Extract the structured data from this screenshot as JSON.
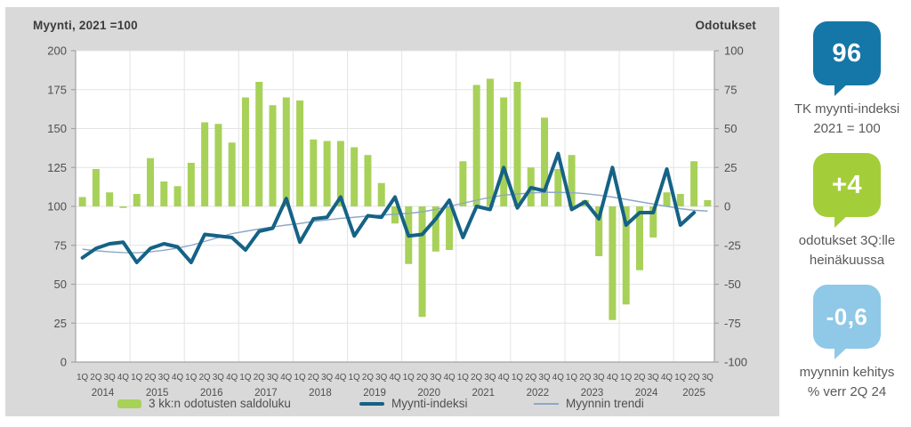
{
  "chart": {
    "title_left": "Myynti, 2021 =100",
    "title_right": "Odotukset"
  },
  "chart_data": {
    "type": "bar+line combo, dual axis",
    "left_axis": {
      "label": "Myynti, 2021 =100",
      "min": 0,
      "max": 200,
      "step": 25,
      "ticks": [
        0,
        25,
        50,
        75,
        100,
        125,
        150,
        175,
        200
      ]
    },
    "right_axis": {
      "label": "Odotukset",
      "min": -100,
      "max": 100,
      "step": 25,
      "ticks": [
        -100,
        -75,
        -50,
        -25,
        0,
        25,
        50,
        75,
        100
      ]
    },
    "years": [
      {
        "year": "2014",
        "quarters": [
          "1Q",
          "2Q",
          "3Q",
          "4Q"
        ]
      },
      {
        "year": "2015",
        "quarters": [
          "1Q",
          "2Q",
          "3Q",
          "4Q"
        ]
      },
      {
        "year": "2016",
        "quarters": [
          "1Q",
          "2Q",
          "3Q",
          "4Q"
        ]
      },
      {
        "year": "2017",
        "quarters": [
          "1Q",
          "2Q",
          "3Q",
          "4Q"
        ]
      },
      {
        "year": "2018",
        "quarters": [
          "1Q",
          "2Q",
          "3Q",
          "4Q"
        ]
      },
      {
        "year": "2019",
        "quarters": [
          "1Q",
          "2Q",
          "3Q",
          "4Q"
        ]
      },
      {
        "year": "2020",
        "quarters": [
          "1Q",
          "2Q",
          "3Q",
          "4Q"
        ]
      },
      {
        "year": "2021",
        "quarters": [
          "1Q",
          "2Q",
          "3Q",
          "4Q"
        ]
      },
      {
        "year": "2022",
        "quarters": [
          "1Q",
          "2Q",
          "3Q",
          "4Q"
        ]
      },
      {
        "year": "2023",
        "quarters": [
          "1Q",
          "2Q",
          "3Q",
          "4Q"
        ]
      },
      {
        "year": "2024",
        "quarters": [
          "1Q",
          "2Q",
          "3Q",
          "4Q"
        ]
      },
      {
        "year": "2025",
        "quarters": [
          "1Q",
          "2Q",
          "3Q"
        ]
      }
    ],
    "series": [
      {
        "name": "3 kk:n odotusten saldoluku",
        "type": "bar",
        "axis": "right",
        "color": "#a8d159",
        "values": [
          6,
          24,
          9,
          -1,
          8,
          31,
          16,
          13,
          28,
          54,
          53,
          41,
          70,
          80,
          65,
          70,
          68,
          43,
          42,
          42,
          38,
          33,
          15,
          -11,
          -37,
          -71,
          -29,
          -28,
          29,
          78,
          82,
          70,
          80,
          25,
          57,
          24,
          33,
          4,
          -32,
          -73,
          -63,
          -41,
          -20,
          9,
          8,
          29,
          4
        ]
      },
      {
        "name": "Myynti-indeksi",
        "type": "line",
        "axis": "left",
        "color": "#156286",
        "values": [
          67,
          73,
          76,
          77,
          64,
          73,
          76,
          74,
          64,
          82,
          81,
          80,
          72,
          84,
          86,
          105,
          77,
          92,
          93,
          106,
          81,
          94,
          93,
          106,
          81,
          82,
          92,
          104,
          80,
          100,
          98,
          125,
          99,
          112,
          110,
          134,
          98,
          103,
          92,
          125,
          88,
          96,
          96,
          124,
          88,
          96,
          null
        ]
      },
      {
        "name": "Myynnin trendi",
        "type": "line",
        "axis": "left",
        "color": "#8ca8c6",
        "values": [
          72.5,
          71.5,
          70.8,
          70.3,
          70.2,
          70.8,
          71.8,
          73.2,
          75,
          77.5,
          80,
          82.5,
          84,
          85.5,
          86.8,
          88,
          89,
          90.3,
          91.3,
          92.3,
          93,
          93.8,
          94.4,
          95,
          95.5,
          96.5,
          98,
          100,
          102,
          104,
          105.8,
          107.2,
          108,
          108.6,
          109,
          109,
          108.8,
          108.2,
          107.2,
          106,
          104.5,
          103,
          101.5,
          100,
          98.5,
          97.5,
          97
        ]
      }
    ],
    "grid": {
      "horizontal": true,
      "vertical_year_separators": true
    },
    "legend_position": "bottom"
  },
  "legend": {
    "items": [
      {
        "label": "3 kk:n odotusten saldoluku",
        "color": "#a8d159",
        "kind": "bar-swatch"
      },
      {
        "label": "Myynti-indeksi",
        "color": "#156286",
        "kind": "thick-line-swatch"
      },
      {
        "label": "Myynnin trendi",
        "color": "#8ca8c6",
        "kind": "thin-line-swatch"
      }
    ]
  },
  "sidebar": {
    "cards": [
      {
        "value": "96",
        "color": "#1577a8",
        "line1": "TK myynti-indeksi",
        "line2": "2021 = 100"
      },
      {
        "value": "+4",
        "color": "#a4ce39",
        "line1": "odotukset 3Q:lle",
        "line2": "heinäkuussa"
      },
      {
        "value": "-0,6",
        "color": "#90c8e8",
        "line1": "myynnin kehitys",
        "line2": "% verr 2Q 24"
      }
    ]
  }
}
